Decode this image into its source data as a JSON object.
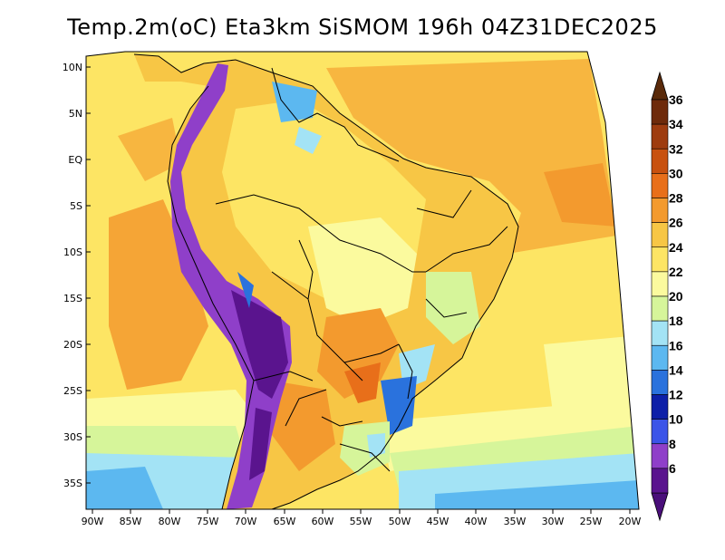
{
  "title": "Temp.2m(oC) Eta3km SiSMOM 196h 04Z31DEC2025",
  "lat_labels": [
    "10N",
    "5N",
    "EQ",
    "5S",
    "10S",
    "15S",
    "20S",
    "25S",
    "30S",
    "35S"
  ],
  "lon_labels": [
    "90W",
    "85W",
    "80W",
    "75W",
    "70W",
    "65W",
    "60W",
    "55W",
    "50W",
    "45W",
    "40W",
    "35W",
    "30W",
    "25W",
    "20W"
  ],
  "colorbar": {
    "labels": [
      "36",
      "34",
      "32",
      "30",
      "28",
      "26",
      "24",
      "22",
      "20",
      "18",
      "16",
      "14",
      "12",
      "10",
      "8",
      "6"
    ],
    "colors": [
      "#6e2a0a",
      "#9e3c0f",
      "#c8510f",
      "#e86f1a",
      "#f39a2e",
      "#f7c645",
      "#fde564",
      "#fbfa9e",
      "#d6f59a",
      "#a3e3f5",
      "#5cb8f0",
      "#2a72dd",
      "#0d1fa8",
      "#3b54e8",
      "#8f3fc9",
      "#5a148e"
    ],
    "arrow_top": "#5a2a0a",
    "arrow_bottom": "#4a0f7a"
  }
}
